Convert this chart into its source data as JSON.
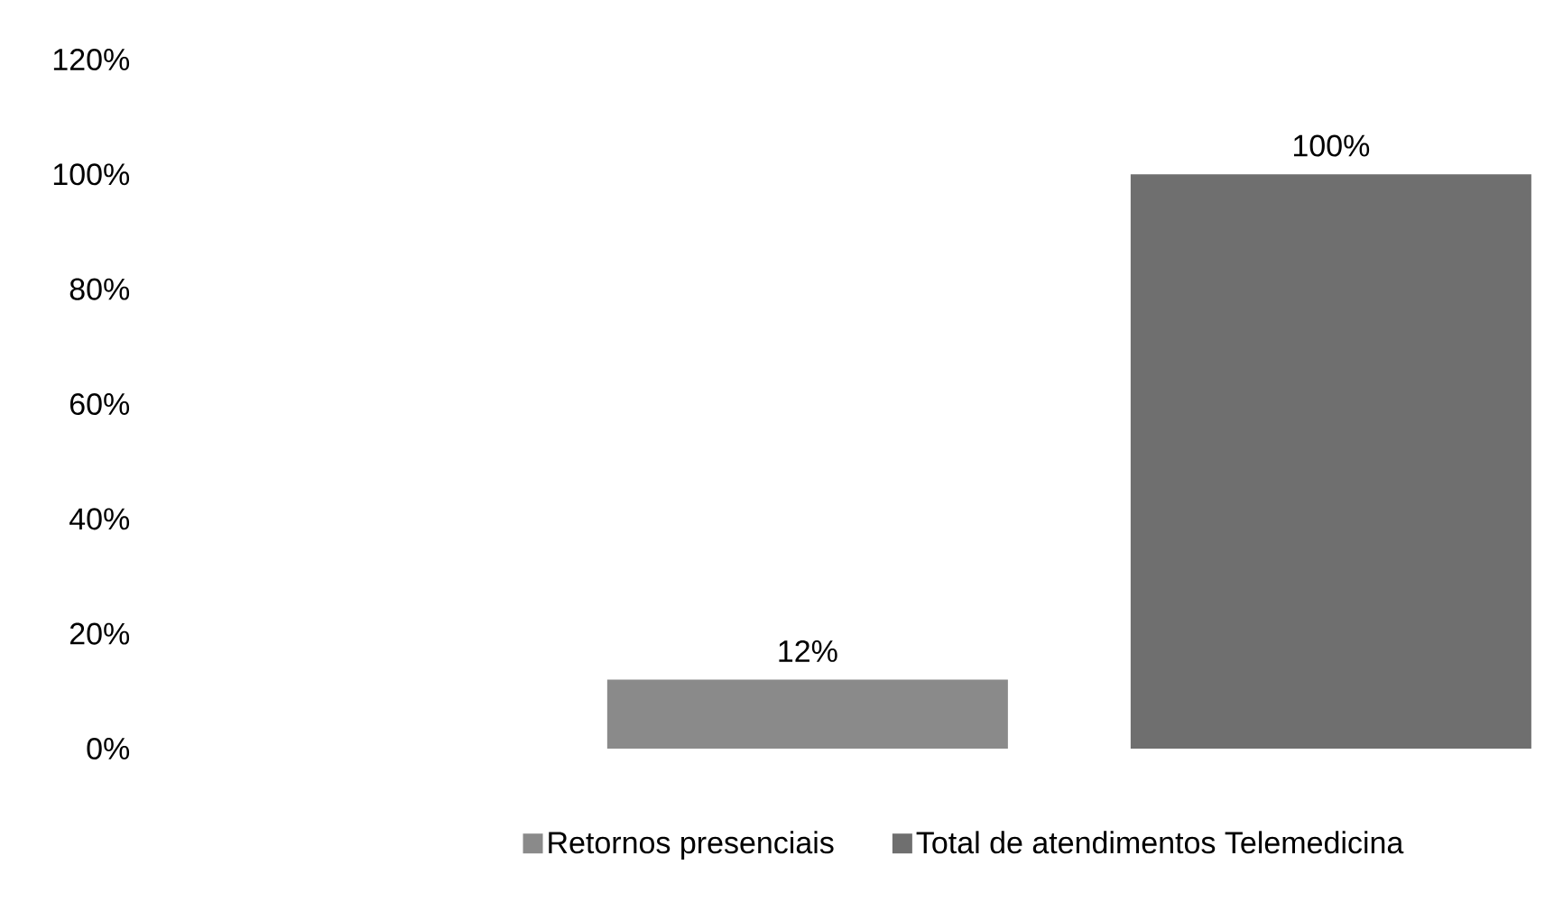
{
  "chart_data": {
    "type": "bar",
    "categories": [
      null
    ],
    "series": [
      {
        "name": "Retornos presenciais",
        "color": "#8a8a8a",
        "values": [
          12
        ],
        "value_labels": [
          "12%"
        ]
      },
      {
        "name": "Total de atendimentos Telemedicina",
        "color": "#6f6f6f",
        "values": [
          100
        ],
        "value_labels": [
          "100%"
        ]
      }
    ],
    "ylim": [
      0,
      120
    ],
    "yticks": [
      {
        "value": 0,
        "label": "0%"
      },
      {
        "value": 20,
        "label": "20%"
      },
      {
        "value": 40,
        "label": "40%"
      },
      {
        "value": 60,
        "label": "60%"
      },
      {
        "value": 80,
        "label": "80%"
      },
      {
        "value": 100,
        "label": "100%"
      },
      {
        "value": 120,
        "label": "120%"
      }
    ],
    "grid": false,
    "legend": "bottom"
  }
}
